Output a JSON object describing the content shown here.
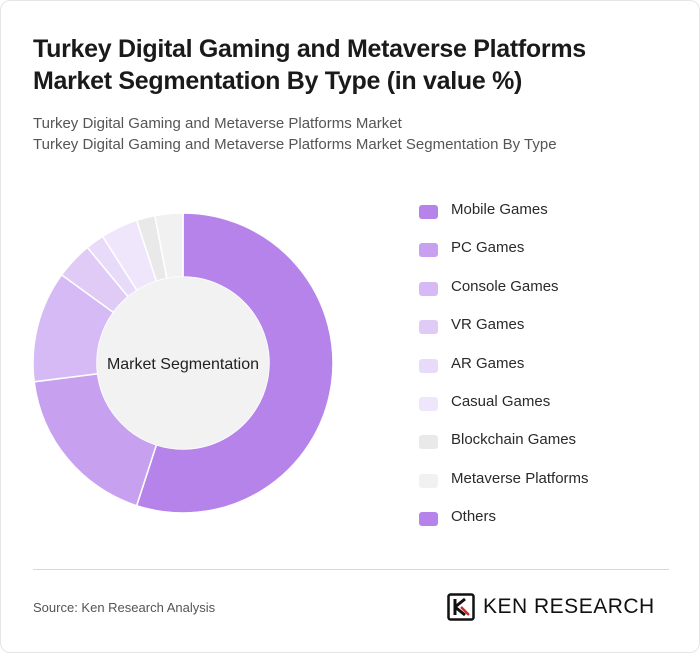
{
  "title": "Turkey Digital Gaming and Metaverse Platforms Market Segmentation By Type (in value %)",
  "subtitle_line1": "Turkey Digital Gaming and Metaverse Platforms Market",
  "subtitle_line2": "Turkey Digital Gaming and Metaverse Platforms Market Segmentation By Type",
  "source": "Source: Ken Research Analysis",
  "logo_text": "KEN RESEARCH",
  "chart_data": {
    "type": "pie",
    "donut": true,
    "center_label": "Market Segmentation",
    "legend_position": "right",
    "categories": [
      "Mobile Games",
      "PC Games",
      "Console Games",
      "VR Games",
      "AR Games",
      "Casual Games",
      "Blockchain Games",
      "Metaverse Platforms",
      "Others"
    ],
    "values": [
      55,
      18,
      12,
      4,
      2,
      4,
      2,
      3,
      0
    ],
    "colors": [
      "#b583ea",
      "#c7a0f0",
      "#d6baf5",
      "#e0cbf7",
      "#e8daf9",
      "#efe6fb",
      "#e9e9e9",
      "#f1f1f1",
      "#b583ea"
    ]
  }
}
